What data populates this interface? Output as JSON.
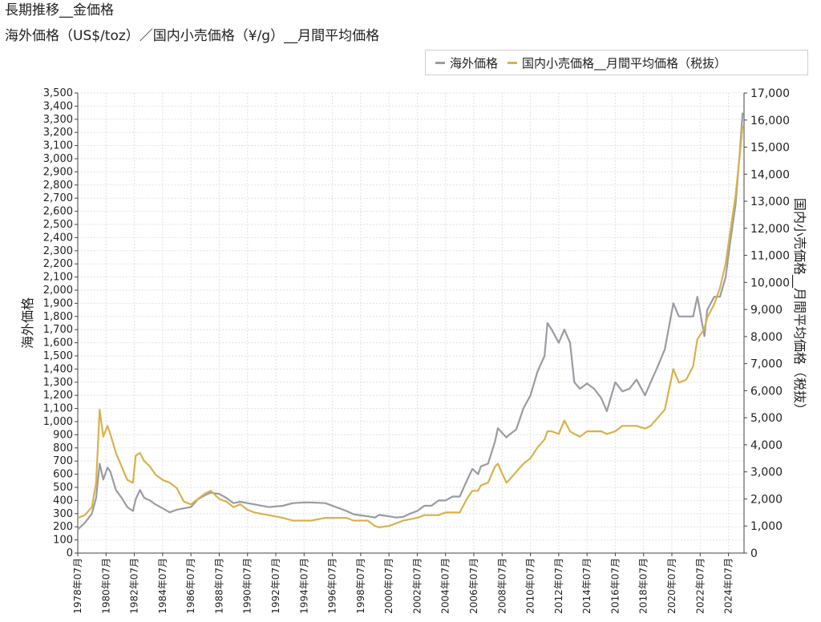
{
  "title": "長期推移__金価格",
  "subtitle": "海外価格（US$/toz）／国内小売価格（¥/g）__月間平均価格",
  "colors": {
    "overseas": "#9b9ca3",
    "domestic": "#d8b24c",
    "grid": "#e2e2e2",
    "axis": "#444444"
  },
  "legend": {
    "position": "top-right",
    "items": [
      "海外価格",
      "国内小売価格__月間平均価格（税抜）"
    ]
  },
  "chart_data": {
    "type": "line",
    "title": "長期推移__金価格",
    "subtitle": "海外価格（US$/toz）／国内小売価格（¥/g）__月間平均価格",
    "ylabel": "海外価格",
    "y2label": "国内小売価格__月間平均価格（税抜）",
    "ylim": [
      0,
      3500
    ],
    "y2lim": [
      0,
      17000
    ],
    "y_ticks": [
      0,
      100,
      200,
      300,
      400,
      500,
      600,
      700,
      800,
      900,
      1000,
      1100,
      1200,
      1300,
      1400,
      1500,
      1600,
      1700,
      1800,
      1900,
      2000,
      2100,
      2200,
      2300,
      2400,
      2500,
      2600,
      2700,
      2800,
      2900,
      3000,
      3100,
      3200,
      3300,
      3400,
      3500
    ],
    "y_tick_labels": [
      "0",
      "100",
      "200",
      "300",
      "400",
      "500",
      "600",
      "700",
      "800",
      "900",
      "1,000",
      "1,100",
      "1,200",
      "1,300",
      "1,400",
      "1,500",
      "1,600",
      "1,700",
      "1,800",
      "1,900",
      "2,000",
      "2,100",
      "2,200",
      "2,300",
      "2,400",
      "2,500",
      "2,600",
      "2,700",
      "2,800",
      "2,900",
      "3,000",
      "3,100",
      "3,200",
      "3,300",
      "3,400",
      "3,500"
    ],
    "y2_ticks": [
      0,
      1000,
      2000,
      3000,
      4000,
      5000,
      6000,
      7000,
      8000,
      9000,
      10000,
      11000,
      12000,
      13000,
      14000,
      15000,
      16000,
      17000
    ],
    "y2_tick_labels": [
      "0",
      "1,000",
      "2,000",
      "3,000",
      "4,000",
      "5,000",
      "6,000",
      "7,000",
      "8,000",
      "9,000",
      "10,000",
      "11,000",
      "12,000",
      "13,000",
      "14,000",
      "15,000",
      "16,000",
      "17,000"
    ],
    "x_ticks": [
      1978.5,
      1980.5,
      1982.5,
      1984.5,
      1986.5,
      1988.5,
      1990.5,
      1992.5,
      1994.5,
      1996.5,
      1998.5,
      2000.5,
      2002.5,
      2004.5,
      2006.5,
      2008.5,
      2010.5,
      2012.5,
      2014.5,
      2016.5,
      2018.5,
      2020.5,
      2022.5,
      2024.5
    ],
    "x_tick_labels": [
      "1978年07月",
      "1980年07月",
      "1982年07月",
      "1984年07月",
      "1986年07月",
      "1988年07月",
      "1990年07月",
      "1992年07月",
      "1994年07月",
      "1996年07月",
      "1998年07月",
      "2000年07月",
      "2002年07月",
      "2004年07月",
      "2006年07月",
      "2008年07月",
      "2010年07月",
      "2012年07月",
      "2014年07月",
      "2016年07月",
      "2018年07月",
      "2020年07月",
      "2022年07月",
      "2024年07月"
    ],
    "xlim": [
      1978.5,
      2025.6
    ],
    "grid": true,
    "series": [
      {
        "name": "海外価格",
        "axis": "left",
        "color": "#9b9ca3",
        "x": [
          1978.5,
          1979.0,
          1979.5,
          1979.8,
          1980.05,
          1980.3,
          1980.6,
          1980.8,
          1981.2,
          1981.6,
          1982.0,
          1982.4,
          1982.6,
          1982.9,
          1983.2,
          1983.6,
          1984.0,
          1984.5,
          1985.0,
          1985.5,
          1986.0,
          1986.5,
          1987.0,
          1987.5,
          1987.9,
          1988.5,
          1989.0,
          1989.5,
          1990.0,
          1990.5,
          1991.0,
          1992.0,
          1993.0,
          1993.7,
          1994.5,
          1995.0,
          1996.0,
          1996.5,
          1997.0,
          1997.5,
          1998.0,
          1999.0,
          1999.5,
          1999.8,
          2000.5,
          2001.0,
          2001.5,
          2002.0,
          2002.5,
          2003.0,
          2003.5,
          2004.0,
          2004.5,
          2005.0,
          2005.5,
          2006.0,
          2006.4,
          2006.8,
          2007.0,
          2007.5,
          2008.0,
          2008.2,
          2008.8,
          2009.0,
          2009.5,
          2010.0,
          2010.5,
          2011.0,
          2011.5,
          2011.7,
          2012.0,
          2012.5,
          2012.9,
          2013.3,
          2013.6,
          2014.0,
          2014.5,
          2015.0,
          2015.5,
          2015.9,
          2016.5,
          2017.0,
          2017.5,
          2018.0,
          2018.6,
          2019.0,
          2019.5,
          2020.0,
          2020.6,
          2021.0,
          2021.5,
          2022.0,
          2022.3,
          2022.8,
          2023.0,
          2023.5,
          2023.9,
          2024.3,
          2024.6,
          2025.0,
          2025.3,
          2025.5
        ],
        "y": [
          180,
          230,
          300,
          420,
          680,
          560,
          650,
          620,
          480,
          420,
          350,
          320,
          410,
          480,
          420,
          400,
          370,
          340,
          310,
          330,
          340,
          350,
          410,
          440,
          460,
          450,
          420,
          380,
          390,
          380,
          370,
          350,
          360,
          380,
          385,
          385,
          380,
          360,
          340,
          320,
          295,
          280,
          270,
          290,
          280,
          270,
          275,
          300,
          320,
          360,
          360,
          400,
          400,
          430,
          430,
          550,
          640,
          600,
          660,
          680,
          850,
          950,
          880,
          900,
          940,
          1100,
          1200,
          1380,
          1500,
          1750,
          1700,
          1600,
          1700,
          1600,
          1300,
          1250,
          1290,
          1250,
          1180,
          1080,
          1300,
          1230,
          1250,
          1320,
          1200,
          1300,
          1420,
          1550,
          1900,
          1800,
          1800,
          1800,
          1950,
          1650,
          1850,
          1950,
          1950,
          2100,
          2350,
          2650,
          3050,
          3350
        ]
      },
      {
        "name": "国内小売価格__月間平均価格（税抜）",
        "axis": "right",
        "color": "#d8b24c",
        "x": [
          1978.5,
          1979.0,
          1979.5,
          1979.8,
          1980.05,
          1980.3,
          1980.6,
          1980.8,
          1981.2,
          1981.6,
          1982.0,
          1982.4,
          1982.6,
          1982.9,
          1983.2,
          1983.6,
          1984.0,
          1984.5,
          1985.0,
          1985.5,
          1986.0,
          1986.5,
          1987.0,
          1987.5,
          1987.9,
          1988.5,
          1989.0,
          1989.5,
          1990.0,
          1990.5,
          1991.0,
          1992.0,
          1993.0,
          1993.7,
          1994.5,
          1995.0,
          1996.0,
          1996.5,
          1997.0,
          1997.5,
          1998.0,
          1999.0,
          1999.5,
          1999.8,
          2000.5,
          2001.0,
          2001.5,
          2002.0,
          2002.5,
          2003.0,
          2003.5,
          2004.0,
          2004.5,
          2005.0,
          2005.5,
          2006.0,
          2006.4,
          2006.8,
          2007.0,
          2007.5,
          2008.0,
          2008.2,
          2008.8,
          2009.0,
          2009.5,
          2010.0,
          2010.5,
          2011.0,
          2011.5,
          2011.7,
          2012.0,
          2012.5,
          2012.9,
          2013.3,
          2013.6,
          2014.0,
          2014.5,
          2015.0,
          2015.5,
          2015.9,
          2016.5,
          2017.0,
          2017.5,
          2018.0,
          2018.6,
          2019.0,
          2019.5,
          2020.0,
          2020.6,
          2021.0,
          2021.5,
          2022.0,
          2022.3,
          2022.8,
          2023.0,
          2023.5,
          2023.9,
          2024.3,
          2024.6,
          2025.0,
          2025.3,
          2025.5
        ],
        "y": [
          1300,
          1400,
          1700,
          2600,
          5300,
          4300,
          4700,
          4400,
          3700,
          3200,
          2700,
          2600,
          3600,
          3700,
          3400,
          3200,
          2900,
          2700,
          2600,
          2400,
          1900,
          1800,
          2000,
          2200,
          2300,
          2000,
          1900,
          1700,
          1800,
          1600,
          1500,
          1400,
          1300,
          1200,
          1200,
          1200,
          1300,
          1300,
          1300,
          1300,
          1200,
          1200,
          1000,
          950,
          1000,
          1100,
          1200,
          1250,
          1300,
          1400,
          1400,
          1400,
          1500,
          1500,
          1500,
          2000,
          2300,
          2300,
          2500,
          2600,
          3200,
          3300,
          2600,
          2700,
          3000,
          3300,
          3500,
          3900,
          4200,
          4500,
          4500,
          4400,
          4900,
          4500,
          4400,
          4300,
          4500,
          4500,
          4500,
          4400,
          4500,
          4700,
          4700,
          4700,
          4600,
          4700,
          5000,
          5300,
          6800,
          6300,
          6400,
          6900,
          7900,
          8300,
          8700,
          9200,
          9800,
          10700,
          11800,
          13200,
          14700,
          15800
        ]
      }
    ]
  }
}
